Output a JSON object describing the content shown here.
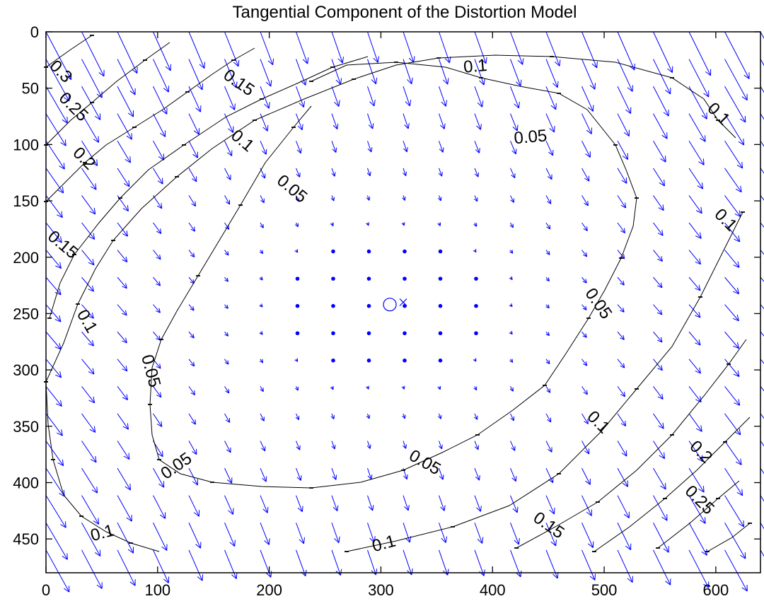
{
  "chart_data": {
    "type": "quiver-contour",
    "title": "Tangential Component of the Distortion Model",
    "xlim": [
      0,
      640
    ],
    "ylim": [
      0,
      480
    ],
    "y_axis_reversed": true,
    "x_ticks": [
      0,
      100,
      200,
      300,
      400,
      500,
      600
    ],
    "y_ticks": [
      0,
      50,
      100,
      150,
      200,
      250,
      300,
      350,
      400,
      450
    ],
    "grid": false,
    "principal_point": {
      "x": 308,
      "y": 242
    },
    "image_center": {
      "x": 320,
      "y": 240
    },
    "quiver_grid": {
      "x_step": 32,
      "y_step": 24.2
    },
    "colors": {
      "arrows": "#0000ff",
      "contours": "#000000",
      "axes": "#000000"
    },
    "contours": [
      {
        "level": "0.05",
        "color": "#000000",
        "points": [
          [
            440,
            115
          ],
          [
            490,
            92
          ],
          [
            560,
            88
          ],
          [
            630,
            95
          ],
          [
            680,
            110
          ],
          [
            735,
            122
          ],
          [
            790,
            132
          ],
          [
            830,
            155
          ],
          [
            870,
            205
          ],
          [
            885,
            240
          ],
          [
            900,
            280
          ],
          [
            895,
            320
          ],
          [
            878,
            365
          ],
          [
            855,
            410
          ],
          [
            832,
            450
          ],
          [
            800,
            500
          ],
          [
            770,
            545
          ],
          [
            725,
            580
          ],
          [
            675,
            615
          ],
          [
            625,
            640
          ],
          [
            570,
            665
          ],
          [
            510,
            682
          ],
          [
            440,
            690
          ],
          [
            370,
            688
          ],
          [
            300,
            682
          ],
          [
            255,
            670
          ],
          [
            225,
            650
          ],
          [
            215,
            615
          ],
          [
            212,
            572
          ],
          [
            215,
            520
          ],
          [
            228,
            480
          ],
          [
            250,
            440
          ],
          [
            280,
            390
          ],
          [
            310,
            340
          ],
          [
            340,
            290
          ],
          [
            375,
            230
          ],
          [
            415,
            180
          ],
          [
            440,
            150
          ]
        ]
      },
      {
        "level": "0.1",
        "color": "#000000",
        "points": [
          [
            65,
            540
          ],
          [
            90,
            485
          ],
          [
            110,
            430
          ],
          [
            135,
            380
          ],
          [
            160,
            340
          ],
          [
            200,
            295
          ],
          [
            250,
            250
          ],
          [
            300,
            210
          ],
          [
            360,
            170
          ],
          [
            430,
            140
          ],
          [
            500,
            112
          ],
          [
            560,
            92
          ],
          [
            620,
            82
          ],
          [
            700,
            78
          ],
          [
            780,
            80
          ],
          [
            870,
            88
          ],
          [
            950,
            110
          ],
          [
            995,
            140
          ],
          [
            1015,
            170
          ],
          [
            1040,
            195
          ]
        ]
      },
      {
        "level": "0.1",
        "color": "#000000",
        "points": [
          [
            65,
            540
          ],
          [
            68,
            600
          ],
          [
            75,
            650
          ],
          [
            90,
            700
          ],
          [
            115,
            730
          ],
          [
            150,
            752
          ],
          [
            185,
            768
          ],
          [
            225,
            780
          ]
        ]
      },
      {
        "level": "0.1",
        "color": "#000000",
        "points": [
          [
            490,
            780
          ],
          [
            560,
            765
          ],
          [
            640,
            745
          ],
          [
            720,
            715
          ],
          [
            790,
            670
          ],
          [
            850,
            610
          ],
          [
            900,
            550
          ],
          [
            950,
            490
          ],
          [
            990,
            420
          ],
          [
            1025,
            350
          ],
          [
            1050,
            300
          ]
        ]
      },
      {
        "level": "0.15",
        "color": "#000000",
        "points": [
          [
            70,
            450
          ],
          [
            85,
            400
          ],
          [
            105,
            360
          ],
          [
            140,
            315
          ],
          [
            170,
            280
          ],
          [
            210,
            240
          ],
          [
            260,
            205
          ],
          [
            320,
            165
          ],
          [
            370,
            140
          ],
          [
            420,
            118
          ],
          [
            470,
            95
          ],
          [
            520,
            80
          ]
        ]
      },
      {
        "level": "0.15",
        "color": "#000000",
        "points": [
          [
            730,
            775
          ],
          [
            785,
            745
          ],
          [
            845,
            710
          ],
          [
            900,
            665
          ],
          [
            950,
            615
          ],
          [
            995,
            560
          ],
          [
            1030,
            515
          ],
          [
            1055,
            480
          ]
        ]
      },
      {
        "level": "0.2",
        "color": "#000000",
        "points": [
          [
            65,
            285
          ],
          [
            90,
            260
          ],
          [
            120,
            230
          ],
          [
            150,
            205
          ],
          [
            190,
            180
          ],
          [
            230,
            155
          ],
          [
            265,
            130
          ],
          [
            300,
            105
          ],
          [
            330,
            85
          ],
          [
            360,
            68
          ]
        ]
      },
      {
        "level": "0.2",
        "color": "#000000",
        "points": [
          [
            840,
            780
          ],
          [
            890,
            745
          ],
          [
            940,
            705
          ],
          [
            985,
            665
          ],
          [
            1025,
            625
          ],
          [
            1060,
            590
          ]
        ]
      },
      {
        "level": "0.25",
        "color": "#000000",
        "points": [
          [
            65,
            205
          ],
          [
            100,
            170
          ],
          [
            130,
            145
          ],
          [
            165,
            115
          ],
          [
            205,
            85
          ],
          [
            240,
            60
          ]
        ]
      },
      {
        "level": "0.25",
        "color": "#000000",
        "points": [
          [
            930,
            775
          ],
          [
            975,
            740
          ],
          [
            1015,
            705
          ],
          [
            1045,
            680
          ]
        ]
      },
      {
        "level": "0.3",
        "color": "#000000",
        "points": [
          [
            65,
            95
          ],
          [
            100,
            70
          ],
          [
            130,
            50
          ]
        ]
      },
      {
        "level": "0.3",
        "color": "#000000",
        "points": [
          [
            1000,
            780
          ],
          [
            1035,
            760
          ],
          [
            1060,
            740
          ]
        ]
      }
    ],
    "contour_labels": [
      {
        "text": "0.1",
        "x": 672,
        "y": 95,
        "angle": -5
      },
      {
        "text": "0.1",
        "x": 1015,
        "y": 162,
        "angle": 45
      },
      {
        "text": "0.15",
        "x": 337,
        "y": 118,
        "angle": 35
      },
      {
        "text": "0.3",
        "x": 85,
        "y": 102,
        "angle": 45
      },
      {
        "text": "0.25",
        "x": 103,
        "y": 152,
        "angle": 45
      },
      {
        "text": "0.2",
        "x": 118,
        "y": 225,
        "angle": 45
      },
      {
        "text": "0.1",
        "x": 342,
        "y": 200,
        "angle": 40
      },
      {
        "text": "0.05",
        "x": 750,
        "y": 195,
        "angle": -5
      },
      {
        "text": "0.05",
        "x": 412,
        "y": 268,
        "angle": 40
      },
      {
        "text": "0.1",
        "x": 1025,
        "y": 312,
        "angle": 45
      },
      {
        "text": "0.15",
        "x": 88,
        "y": 347,
        "angle": 40
      },
      {
        "text": "0.05",
        "x": 845,
        "y": 430,
        "angle": 55
      },
      {
        "text": "0.1",
        "x": 122,
        "y": 455,
        "angle": 60
      },
      {
        "text": "0.05",
        "x": 212,
        "y": 525,
        "angle": 75
      },
      {
        "text": "0.1",
        "x": 845,
        "y": 598,
        "angle": 45
      },
      {
        "text": "0.2",
        "x": 990,
        "y": 640,
        "angle": 45
      },
      {
        "text": "0.05",
        "x": 600,
        "y": 655,
        "angle": 30
      },
      {
        "text": "0.05",
        "x": 250,
        "y": 660,
        "angle": -35
      },
      {
        "text": "0.25",
        "x": 988,
        "y": 708,
        "angle": 45
      },
      {
        "text": "0.15",
        "x": 775,
        "y": 744,
        "angle": 35
      },
      {
        "text": "0.1",
        "x": 145,
        "y": 755,
        "angle": -15
      },
      {
        "text": "0.1",
        "x": 543,
        "y": 770,
        "angle": -15
      }
    ],
    "markers": [
      {
        "type": "circle",
        "label": "principal point",
        "x": 308,
        "y": 242
      },
      {
        "type": "cross",
        "label": "image center",
        "x": 320,
        "y": 240
      }
    ]
  }
}
